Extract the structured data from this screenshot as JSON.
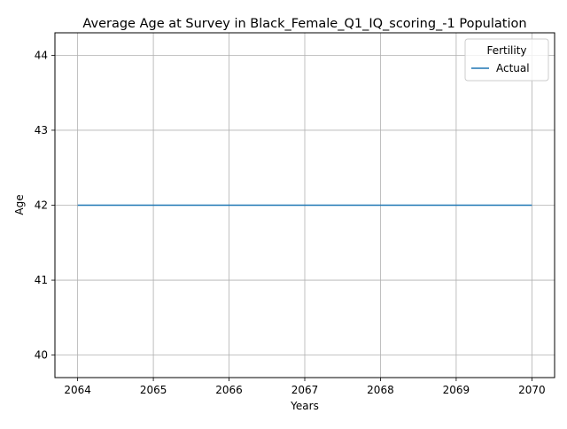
{
  "chart_data": {
    "type": "line",
    "title": "Average Age at Survey in Black_Female_Q1_IQ_scoring_-1 Population",
    "xlabel": "Years",
    "ylabel": "Age",
    "x": [
      2064,
      2065,
      2066,
      2067,
      2068,
      2069,
      2070
    ],
    "series": [
      {
        "name": "Actual",
        "color": "#1f77b4",
        "values": [
          42,
          42,
          42,
          42,
          42,
          42,
          42
        ]
      }
    ],
    "xlim": [
      2063.7,
      2070.3
    ],
    "ylim": [
      39.7,
      44.3
    ],
    "xticks": [
      2064,
      2065,
      2066,
      2067,
      2068,
      2069,
      2070
    ],
    "yticks": [
      40,
      41,
      42,
      43,
      44
    ],
    "grid": true,
    "legend": {
      "title": "Fertility",
      "placement": "top-right"
    }
  }
}
